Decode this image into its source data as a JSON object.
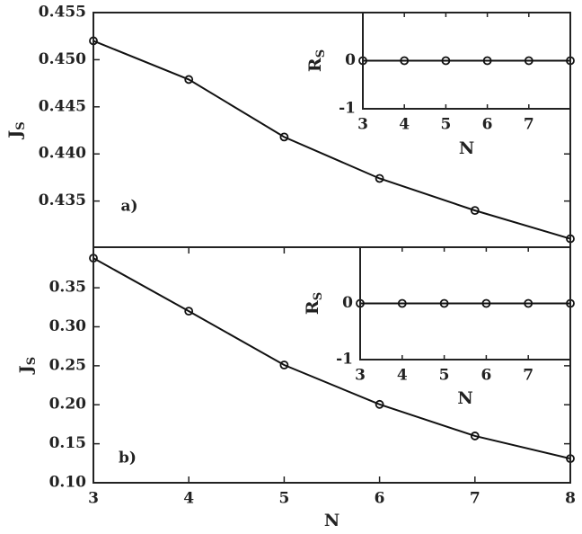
{
  "chart_data": [
    {
      "type": "line",
      "ylabel": "J",
      "ylabel_subscript": "S",
      "annotation": "a)",
      "x": [
        3,
        4,
        5,
        6,
        7,
        8
      ],
      "series": [
        {
          "color": "#111111",
          "marker": "circle",
          "values": [
            0.452,
            0.4479,
            0.4418,
            0.4374,
            0.434,
            0.431
          ]
        }
      ],
      "xlim": [
        3,
        8
      ],
      "ylim": [
        0.4301,
        0.455
      ],
      "yticks": [
        {
          "value": 0.435,
          "label": "0.435"
        },
        {
          "value": 0.44,
          "label": "0.440"
        },
        {
          "value": 0.445,
          "label": "0.445"
        },
        {
          "value": 0.45,
          "label": "0.450"
        },
        {
          "value": 0.455,
          "label": "0.455"
        }
      ]
    },
    {
      "type": "line",
      "xlabel": "N",
      "ylabel": "R",
      "ylabel_subscript": "S",
      "x": [
        3,
        4,
        5,
        6,
        7,
        8
      ],
      "series": [
        {
          "color": "#111111",
          "marker": "circle",
          "values": [
            0,
            0,
            0,
            0,
            0,
            0
          ]
        }
      ],
      "xlim": [
        3,
        8
      ],
      "ylim": [
        -1,
        1
      ],
      "xticks": [
        3,
        4,
        5,
        6,
        7
      ],
      "yticks": [
        -1,
        0
      ]
    },
    {
      "type": "line",
      "xlabel": "N",
      "ylabel": "J",
      "ylabel_subscript": "S",
      "annotation": "b)",
      "x": [
        3,
        4,
        5,
        6,
        7,
        8
      ],
      "series": [
        {
          "color": "#111111",
          "marker": "circle",
          "values": [
            0.388,
            0.32,
            0.251,
            0.2005,
            0.16,
            0.131
          ]
        }
      ],
      "xlim": [
        3,
        8
      ],
      "ylim": [
        0.1,
        0.402
      ],
      "xticks": [
        3,
        4,
        5,
        6,
        7,
        8
      ],
      "yticks": [
        {
          "value": 0.1,
          "label": "0.10"
        },
        {
          "value": 0.15,
          "label": "0.15"
        },
        {
          "value": 0.2,
          "label": "0.20"
        },
        {
          "value": 0.25,
          "label": "0.25"
        },
        {
          "value": 0.3,
          "label": "0.30"
        },
        {
          "value": 0.35,
          "label": "0.35"
        }
      ]
    },
    {
      "type": "line",
      "xlabel": "N",
      "ylabel": "R",
      "ylabel_subscript": "S",
      "x": [
        3,
        4,
        5,
        6,
        7,
        8
      ],
      "series": [
        {
          "color": "#111111",
          "marker": "circle",
          "values": [
            0,
            0,
            0,
            0,
            0,
            0
          ]
        }
      ],
      "xlim": [
        3,
        8
      ],
      "ylim": [
        -1,
        1
      ],
      "xticks": [
        3,
        4,
        5,
        6,
        7
      ],
      "yticks": [
        -1,
        0
      ]
    }
  ]
}
